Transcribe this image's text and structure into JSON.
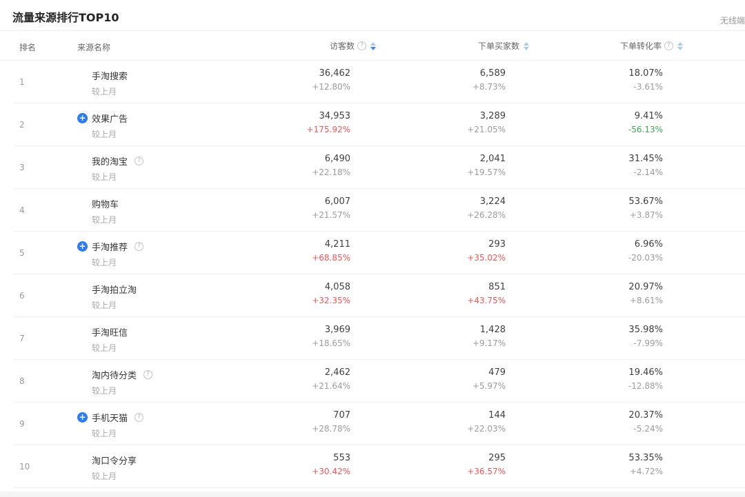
{
  "page": {
    "title": "流量来源排行TOP10",
    "corner_link": "无线端"
  },
  "icons": {
    "help": "?",
    "expand": "+"
  },
  "colors": {
    "up_red": "#ff5252",
    "down_green": "#36a854",
    "neutral_gray": "#9c9c9c",
    "expand_blue": "#2b7cf0",
    "sort_active": "#3d85f2",
    "sort_inactive": "#abc8f3"
  },
  "table": {
    "columns": {
      "rank": "排名",
      "source": "来源名称",
      "visitors": {
        "label": "访客数",
        "help": true,
        "sort": "desc"
      },
      "buyers": {
        "label": "下单买家数",
        "help": false,
        "sort": "none"
      },
      "conversion": {
        "label": "下单转化率",
        "help": true,
        "sort": "none"
      }
    },
    "compare_label": "较上月",
    "rows": [
      {
        "rank": "1",
        "name": "手淘搜索",
        "expandable": false,
        "help": false,
        "visitors": {
          "value": "36,462",
          "change": "+12.80%",
          "trend": "flat"
        },
        "buyers": {
          "value": "6,589",
          "change": "+8.73%",
          "trend": "flat"
        },
        "conversion": {
          "value": "18.07%",
          "change": "-3.61%",
          "trend": "flat"
        }
      },
      {
        "rank": "2",
        "name": "效果广告",
        "expandable": true,
        "help": false,
        "visitors": {
          "value": "34,953",
          "change": "+175.92%",
          "trend": "up"
        },
        "buyers": {
          "value": "3,289",
          "change": "+21.05%",
          "trend": "flat"
        },
        "conversion": {
          "value": "9.41%",
          "change": "-56.13%",
          "trend": "down"
        }
      },
      {
        "rank": "3",
        "name": "我的淘宝",
        "expandable": false,
        "help": true,
        "visitors": {
          "value": "6,490",
          "change": "+22.18%",
          "trend": "flat"
        },
        "buyers": {
          "value": "2,041",
          "change": "+19.57%",
          "trend": "flat"
        },
        "conversion": {
          "value": "31.45%",
          "change": "-2.14%",
          "trend": "flat"
        }
      },
      {
        "rank": "4",
        "name": "购物车",
        "expandable": false,
        "help": false,
        "visitors": {
          "value": "6,007",
          "change": "+21.57%",
          "trend": "flat"
        },
        "buyers": {
          "value": "3,224",
          "change": "+26.28%",
          "trend": "flat"
        },
        "conversion": {
          "value": "53.67%",
          "change": "+3.87%",
          "trend": "flat"
        }
      },
      {
        "rank": "5",
        "name": "手淘推荐",
        "expandable": true,
        "help": true,
        "visitors": {
          "value": "4,211",
          "change": "+68.85%",
          "trend": "up"
        },
        "buyers": {
          "value": "293",
          "change": "+35.02%",
          "trend": "up"
        },
        "conversion": {
          "value": "6.96%",
          "change": "-20.03%",
          "trend": "flat"
        }
      },
      {
        "rank": "6",
        "name": "手淘拍立淘",
        "expandable": false,
        "help": false,
        "visitors": {
          "value": "4,058",
          "change": "+32.35%",
          "trend": "up"
        },
        "buyers": {
          "value": "851",
          "change": "+43.75%",
          "trend": "up"
        },
        "conversion": {
          "value": "20.97%",
          "change": "+8.61%",
          "trend": "flat"
        }
      },
      {
        "rank": "7",
        "name": "手淘旺信",
        "expandable": false,
        "help": false,
        "visitors": {
          "value": "3,969",
          "change": "+18.65%",
          "trend": "flat"
        },
        "buyers": {
          "value": "1,428",
          "change": "+9.17%",
          "trend": "flat"
        },
        "conversion": {
          "value": "35.98%",
          "change": "-7.99%",
          "trend": "flat"
        }
      },
      {
        "rank": "8",
        "name": "淘内待分类",
        "expandable": false,
        "help": true,
        "visitors": {
          "value": "2,462",
          "change": "+21.64%",
          "trend": "flat"
        },
        "buyers": {
          "value": "479",
          "change": "+5.97%",
          "trend": "flat"
        },
        "conversion": {
          "value": "19.46%",
          "change": "-12.88%",
          "trend": "flat"
        }
      },
      {
        "rank": "9",
        "name": "手机天猫",
        "expandable": true,
        "help": true,
        "visitors": {
          "value": "707",
          "change": "+28.78%",
          "trend": "flat"
        },
        "buyers": {
          "value": "144",
          "change": "+22.03%",
          "trend": "flat"
        },
        "conversion": {
          "value": "20.37%",
          "change": "-5.24%",
          "trend": "flat"
        }
      },
      {
        "rank": "10",
        "name": "淘口令分享",
        "expandable": false,
        "help": false,
        "visitors": {
          "value": "553",
          "change": "+30.42%",
          "trend": "up"
        },
        "buyers": {
          "value": "295",
          "change": "+36.57%",
          "trend": "up"
        },
        "conversion": {
          "value": "53.35%",
          "change": "+4.72%",
          "trend": "flat"
        }
      }
    ]
  }
}
